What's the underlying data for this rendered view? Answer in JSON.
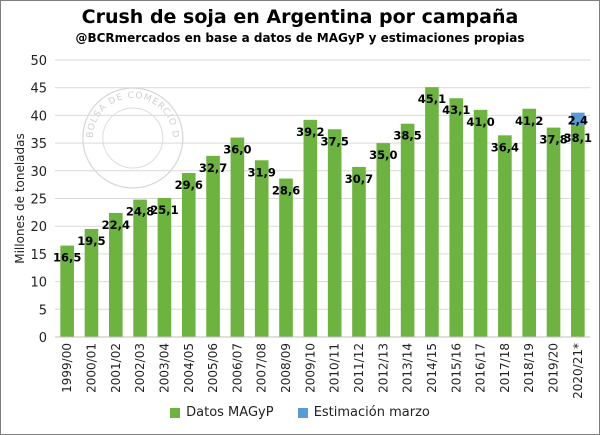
{
  "title": "Crush de soja en Argentina por campaña",
  "subtitle": "@BCRmercados en base a datos de MAGyP y estimaciones propias",
  "watermark": "BOLSA DE COMERCIO DE ROSARIO",
  "colors": {
    "magyp": "#6db33f",
    "estimacion": "#5b9bd5",
    "grid": "#d9d9d9"
  },
  "chart_data": {
    "type": "bar",
    "stacked": true,
    "ylabel": "Millones de toneladas",
    "ylim": [
      0,
      50
    ],
    "yticks": [
      0,
      5,
      10,
      15,
      20,
      25,
      30,
      35,
      40,
      45,
      50
    ],
    "grid": true,
    "legend_position": "bottom",
    "categories": [
      "1999/00",
      "2000/01",
      "2001/02",
      "2002/03",
      "2003/04",
      "2004/05",
      "2005/06",
      "2006/07",
      "2007/08",
      "2008/09",
      "2009/10",
      "2010/11",
      "2011/12",
      "2012/13",
      "2013/14",
      "2014/15",
      "2015/16",
      "2016/17",
      "2017/18",
      "2018/19",
      "2019/20",
      "2020/21*"
    ],
    "series": [
      {
        "name": "Datos MAGyP",
        "values": [
          16.5,
          19.5,
          22.4,
          24.8,
          25.1,
          29.6,
          32.7,
          36.0,
          31.9,
          28.6,
          39.2,
          37.5,
          30.7,
          35.0,
          38.5,
          45.1,
          43.1,
          41.0,
          36.4,
          41.2,
          37.8,
          38.1
        ],
        "labels": [
          "16,5",
          "19,5",
          "22,4",
          "24,8",
          "25,1",
          "29,6",
          "32,7",
          "36,0",
          "31,9",
          "28,6",
          "39,2",
          "37,5",
          "30,7",
          "35,0",
          "38,5",
          "45,1",
          "43,1",
          "41,0",
          "36,4",
          "41,2",
          "37,8",
          "38,1"
        ]
      },
      {
        "name": "Estimación marzo",
        "values": [
          null,
          null,
          null,
          null,
          null,
          null,
          null,
          null,
          null,
          null,
          null,
          null,
          null,
          null,
          null,
          null,
          null,
          null,
          null,
          null,
          null,
          2.4
        ],
        "labels": [
          "",
          "",
          "",
          "",
          "",
          "",
          "",
          "",
          "",
          "",
          "",
          "",
          "",
          "",
          "",
          "",
          "",
          "",
          "",
          "",
          "",
          "2,4"
        ]
      }
    ]
  }
}
